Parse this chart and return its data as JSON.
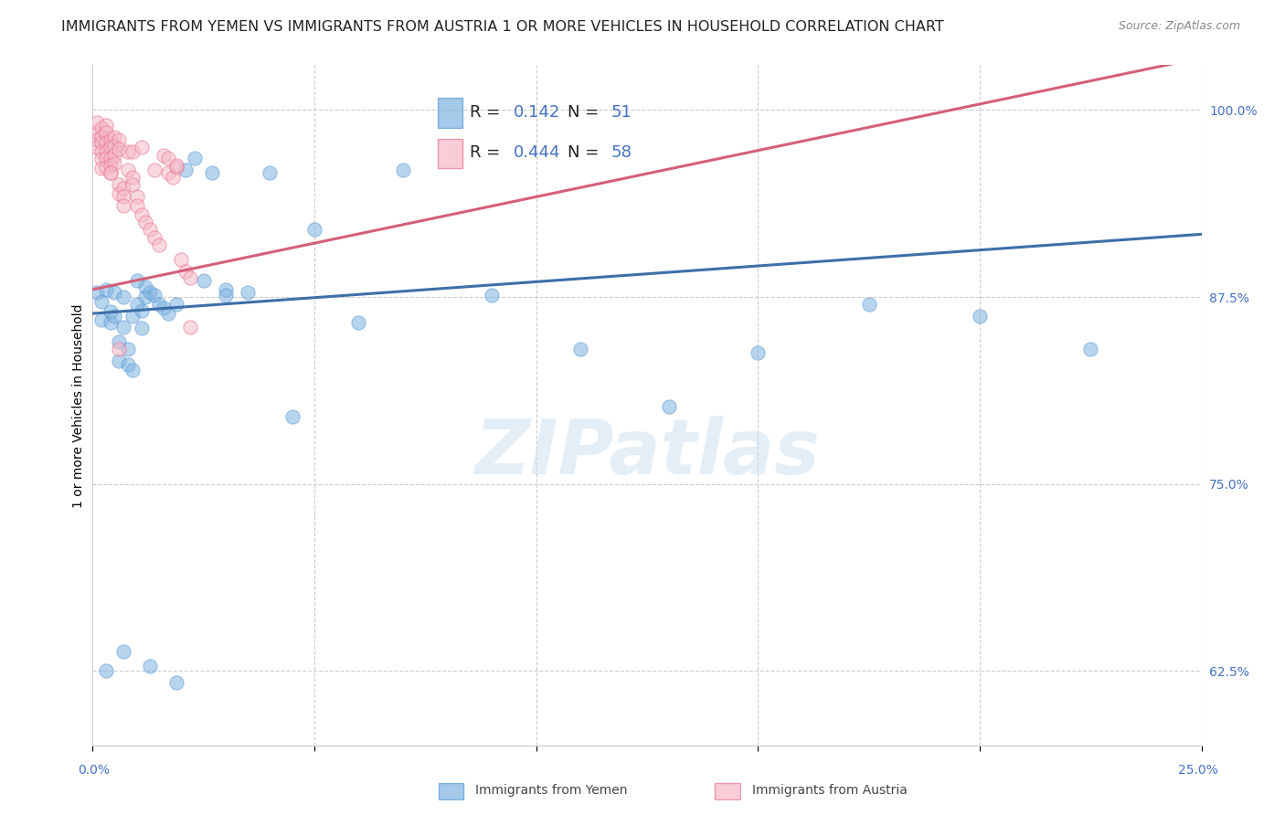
{
  "title": "IMMIGRANTS FROM YEMEN VS IMMIGRANTS FROM AUSTRIA 1 OR MORE VEHICLES IN HOUSEHOLD CORRELATION CHART",
  "source": "Source: ZipAtlas.com",
  "ylabel": "1 or more Vehicles in Household",
  "ytick_labels": [
    "62.5%",
    "75.0%",
    "87.5%",
    "100.0%"
  ],
  "ytick_values": [
    0.625,
    0.75,
    0.875,
    1.0
  ],
  "xlim": [
    0.0,
    0.25
  ],
  "ylim": [
    0.575,
    1.03
  ],
  "blue_color": "#7eb3e0",
  "pink_color": "#f5b8c8",
  "blue_line_color": "#3d6fa8",
  "pink_line_color": "#d45f7a",
  "blue_edge_color": "#5b9bd5",
  "pink_edge_color": "#e87090",
  "watermark_text": "ZIPatlas",
  "background_color": "#ffffff",
  "grid_color": "#cccccc",
  "title_fontsize": 11.5,
  "tick_fontsize": 10,
  "legend_fontsize": 13,
  "scatter_size": 120,
  "scatter_alpha": 0.55,
  "blue_R": "0.142",
  "blue_N": "51",
  "pink_R": "0.444",
  "pink_N": "58",
  "blue_scatter_x": [
    0.001,
    0.002,
    0.002,
    0.003,
    0.004,
    0.004,
    0.005,
    0.005,
    0.006,
    0.006,
    0.007,
    0.007,
    0.008,
    0.008,
    0.009,
    0.009,
    0.01,
    0.01,
    0.011,
    0.011,
    0.012,
    0.012,
    0.013,
    0.014,
    0.015,
    0.016,
    0.017,
    0.019,
    0.021,
    0.023,
    0.025,
    0.027,
    0.03,
    0.035,
    0.04,
    0.05,
    0.06,
    0.07,
    0.09,
    0.11,
    0.13,
    0.15,
    0.175,
    0.2,
    0.225,
    0.003,
    0.007,
    0.013,
    0.019,
    0.03,
    0.045
  ],
  "blue_scatter_y": [
    0.878,
    0.872,
    0.86,
    0.88,
    0.858,
    0.865,
    0.878,
    0.862,
    0.845,
    0.832,
    0.875,
    0.855,
    0.84,
    0.83,
    0.826,
    0.862,
    0.87,
    0.886,
    0.866,
    0.854,
    0.882,
    0.875,
    0.878,
    0.876,
    0.87,
    0.868,
    0.864,
    0.87,
    0.96,
    0.968,
    0.886,
    0.958,
    0.88,
    0.878,
    0.958,
    0.92,
    0.858,
    0.96,
    0.876,
    0.84,
    0.802,
    0.838,
    0.87,
    0.862,
    0.84,
    0.625,
    0.638,
    0.628,
    0.617,
    0.876,
    0.795
  ],
  "pink_scatter_x": [
    0.001,
    0.001,
    0.001,
    0.001,
    0.002,
    0.002,
    0.002,
    0.002,
    0.002,
    0.002,
    0.003,
    0.003,
    0.003,
    0.003,
    0.003,
    0.003,
    0.004,
    0.004,
    0.004,
    0.004,
    0.004,
    0.005,
    0.005,
    0.005,
    0.005,
    0.006,
    0.006,
    0.006,
    0.006,
    0.007,
    0.007,
    0.007,
    0.008,
    0.008,
    0.009,
    0.009,
    0.01,
    0.01,
    0.011,
    0.012,
    0.013,
    0.014,
    0.015,
    0.016,
    0.017,
    0.018,
    0.019,
    0.02,
    0.021,
    0.022,
    0.004,
    0.006,
    0.009,
    0.011,
    0.014,
    0.017,
    0.019,
    0.022
  ],
  "pink_scatter_y": [
    0.985,
    0.98,
    0.992,
    0.975,
    0.988,
    0.982,
    0.978,
    0.972,
    0.967,
    0.961,
    0.99,
    0.985,
    0.978,
    0.972,
    0.968,
    0.962,
    0.98,
    0.975,
    0.968,
    0.963,
    0.958,
    0.982,
    0.976,
    0.97,
    0.964,
    0.98,
    0.974,
    0.95,
    0.944,
    0.948,
    0.942,
    0.936,
    0.972,
    0.96,
    0.955,
    0.95,
    0.942,
    0.936,
    0.93,
    0.925,
    0.92,
    0.915,
    0.91,
    0.97,
    0.958,
    0.955,
    0.962,
    0.9,
    0.892,
    0.888,
    0.958,
    0.84,
    0.972,
    0.975,
    0.96,
    0.968,
    0.963,
    0.855
  ],
  "blue_line": {
    "x0": 0.0,
    "x1": 0.25,
    "y0": 0.864,
    "y1": 0.917
  },
  "pink_line": {
    "x0": 0.0,
    "x1": 0.25,
    "y0": 0.88,
    "y1": 1.035
  }
}
